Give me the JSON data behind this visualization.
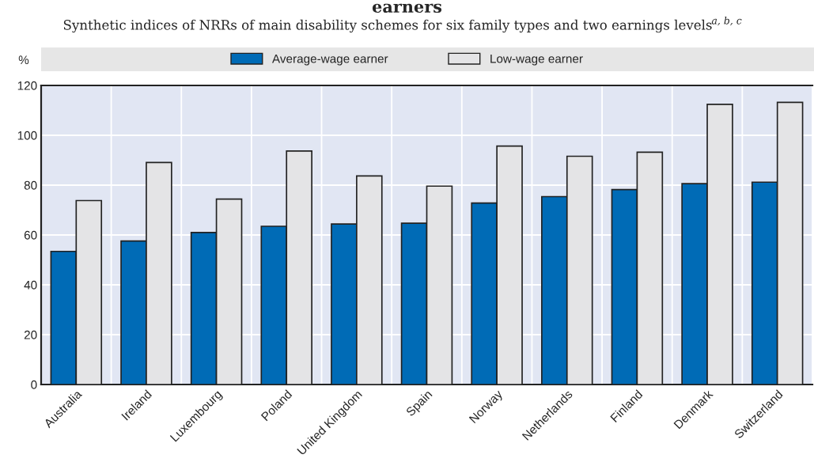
{
  "chart_data": {
    "type": "bar",
    "title": "earners",
    "subtitle": "Synthetic indices of NRRs of main disability schemes for six family types and two earnings levels$^{a, b, c}$",
    "ylabel": "%",
    "categories": [
      "Australia",
      "Ireland",
      "Luxembourg",
      "Poland",
      "United Kingdom",
      "Spain",
      "Norway",
      "Netherlands",
      "Finland",
      "Denmark",
      "Switzerland"
    ],
    "series": [
      {
        "name": "Average-wage earner",
        "color": "#006bb6",
        "values": [
          53.4,
          57.6,
          61.0,
          63.5,
          64.4,
          64.7,
          72.8,
          75.4,
          78.2,
          80.6,
          81.2
        ]
      },
      {
        "name": "Low-wage earner",
        "color": "#e4e4e6",
        "values": [
          73.8,
          89.1,
          74.4,
          93.7,
          83.7,
          79.6,
          95.7,
          91.6,
          93.2,
          112.4,
          113.2
        ]
      }
    ],
    "ylim": [
      0,
      120
    ],
    "yticks": [
      0,
      20,
      40,
      60,
      80,
      100,
      120
    ],
    "grid": true,
    "legend": "top"
  }
}
